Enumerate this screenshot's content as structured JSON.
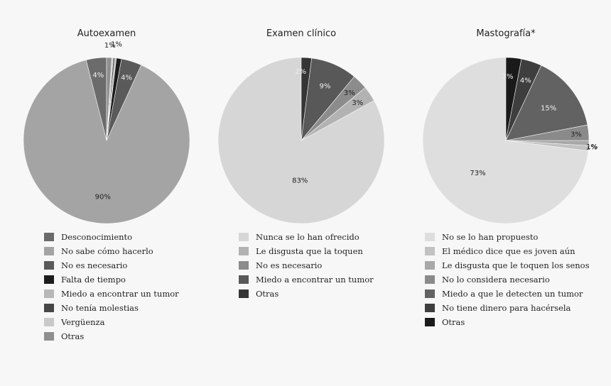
{
  "chart_data": [
    {
      "type": "pie",
      "title": "Autoexamen",
      "slices": [
        {
          "label": "Desconocimiento",
          "value": 4,
          "text": "4%",
          "color": "#6b6b6b",
          "show": true
        },
        {
          "label": "No sabe cómo hacerlo",
          "value": 90,
          "text": "90%",
          "color": "#a4a4a4",
          "show": true
        },
        {
          "label": "No es necesario",
          "value": 4,
          "text": "4%",
          "color": "#5a5a5a",
          "show": true
        },
        {
          "label": "Falta de tiempo",
          "value": 1,
          "text": "1%",
          "color": "#1c1c1c",
          "show": true
        },
        {
          "label": "Miedo a encontrar un tumor",
          "value": 0.3,
          "text": "",
          "color": "#b7b7b7",
          "show": false
        },
        {
          "label": "No tenía molestias",
          "value": 0.3,
          "text": "",
          "color": "#474747",
          "show": false
        },
        {
          "label": "Vergüenza",
          "value": 0.3,
          "text": "",
          "color": "#c9c9c9",
          "show": false
        },
        {
          "label": "Otras",
          "value": 1,
          "text": "1%",
          "color": "#8f8f8f",
          "show": true
        }
      ]
    },
    {
      "type": "pie",
      "title": "Examen clínico",
      "slices": [
        {
          "label": "Nunca se lo han ofrecido",
          "value": 83,
          "text": "83%",
          "color": "#d6d6d6",
          "show": true
        },
        {
          "label": "Le disgusta que la toquen",
          "value": 3,
          "text": "3%",
          "color": "#b2b2b2",
          "show": true
        },
        {
          "label": "No es necesario",
          "value": 3,
          "text": "3%",
          "color": "#8c8c8c",
          "show": true
        },
        {
          "label": "Miedo a encontrar un tumor",
          "value": 9,
          "text": "9%",
          "color": "#585858",
          "show": true
        },
        {
          "label": "Otras",
          "value": 2,
          "text": "2%",
          "color": "#353535",
          "show": true
        }
      ]
    },
    {
      "type": "pie",
      "title": "Mastografía*",
      "slices": [
        {
          "label": "No se lo han propuesto",
          "value": 73,
          "text": "73%",
          "color": "#dedede",
          "show": true
        },
        {
          "label": "El médico dice que es joven aún",
          "value": 1,
          "text": "1%",
          "color": "#c2c2c2",
          "show": true
        },
        {
          "label": "Le disgusta que le toquen los senos",
          "value": 1,
          "text": "1%",
          "color": "#a8a8a8",
          "show": true
        },
        {
          "label": "No lo considera necesario",
          "value": 3,
          "text": "3%",
          "color": "#8a8a8a",
          "show": true
        },
        {
          "label": "Miedo a que le detecten un tumor",
          "value": 15,
          "text": "15%",
          "color": "#626262",
          "show": true
        },
        {
          "label": "No tiene dinero para hacérsela",
          "value": 4,
          "text": "4%",
          "color": "#3e3e3e",
          "show": true
        },
        {
          "label": "Otras",
          "value": 3,
          "text": "3%",
          "color": "#1a1a1a",
          "show": true
        }
      ]
    }
  ]
}
